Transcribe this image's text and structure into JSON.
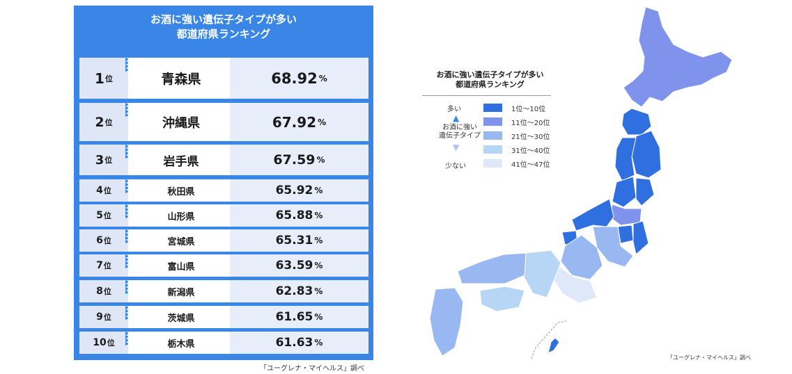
{
  "table": {
    "title_line1": "お酒に強い遺伝子タイプが多い",
    "title_line2": "都道府県ランキング",
    "rank_suffix": "位",
    "percent_sign": "%",
    "rows": [
      {
        "rank": "1",
        "prefecture": "青森県",
        "value": "68.92"
      },
      {
        "rank": "2",
        "prefecture": "沖縄県",
        "value": "67.92"
      },
      {
        "rank": "3",
        "prefecture": "岩手県",
        "value": "67.59"
      },
      {
        "rank": "4",
        "prefecture": "秋田県",
        "value": "65.92"
      },
      {
        "rank": "5",
        "prefecture": "山形県",
        "value": "65.88"
      },
      {
        "rank": "6",
        "prefecture": "宮城県",
        "value": "65.31"
      },
      {
        "rank": "7",
        "prefecture": "富山県",
        "value": "63.59"
      },
      {
        "rank": "8",
        "prefecture": "新潟県",
        "value": "62.83"
      },
      {
        "rank": "9",
        "prefecture": "茨城県",
        "value": "61.65"
      },
      {
        "rank": "10",
        "prefecture": "栃木県",
        "value": "61.63"
      }
    ],
    "source": "「ユーグレナ・マイヘルス」調べ"
  },
  "legend": {
    "title_line1": "お酒に強い遺伝子タイプが多い",
    "title_line2": "都道府県ランキング",
    "more": "多い",
    "axis_line1": "お酒に強い",
    "axis_line2": "遺伝子タイプ",
    "less": "少ない",
    "items": [
      {
        "label": "1位〜10位",
        "color": "#2f6fe0"
      },
      {
        "label": "11位〜20位",
        "color": "#7f93ec"
      },
      {
        "label": "21位〜30位",
        "color": "#99b7f1"
      },
      {
        "label": "31位〜40位",
        "color": "#b7d6f5"
      },
      {
        "label": "41位〜47位",
        "color": "#dfe8f8"
      }
    ]
  },
  "map_source": "「ユーグレナ・マイヘルス」調べ",
  "colors": {
    "table_bg": "#3a86e6",
    "rank_cell": "#dfe7f6",
    "value_cell": "#e7eefa",
    "tier1": "#2f6fe0",
    "tier2": "#7f93ec",
    "tier3": "#99b7f1",
    "tier4": "#b7d6f5",
    "tier5": "#dfe8f8"
  }
}
